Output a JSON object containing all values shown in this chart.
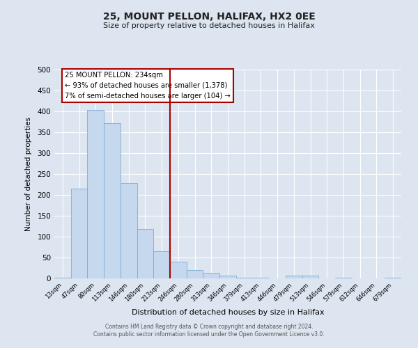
{
  "title": "25, MOUNT PELLON, HALIFAX, HX2 0EE",
  "subtitle": "Size of property relative to detached houses in Halifax",
  "xlabel": "Distribution of detached houses by size in Halifax",
  "ylabel": "Number of detached properties",
  "bar_labels": [
    "13sqm",
    "47sqm",
    "80sqm",
    "113sqm",
    "146sqm",
    "180sqm",
    "213sqm",
    "246sqm",
    "280sqm",
    "313sqm",
    "346sqm",
    "379sqm",
    "413sqm",
    "446sqm",
    "479sqm",
    "513sqm",
    "546sqm",
    "579sqm",
    "612sqm",
    "646sqm",
    "679sqm"
  ],
  "bar_values": [
    2,
    215,
    403,
    371,
    229,
    119,
    65,
    40,
    20,
    13,
    6,
    2,
    1,
    0,
    7,
    7,
    0,
    1,
    0,
    0,
    1
  ],
  "bar_color": "#c5d8ee",
  "bar_edge_color": "#7aadce",
  "vline_x": 6.5,
  "vline_color": "#aa0000",
  "annotation_title": "25 MOUNT PELLON: 234sqm",
  "annotation_line1": "← 93% of detached houses are smaller (1,378)",
  "annotation_line2": "7% of semi-detached houses are larger (104) →",
  "annotation_box_edgecolor": "#aa0000",
  "ylim": [
    0,
    500
  ],
  "yticks": [
    0,
    50,
    100,
    150,
    200,
    250,
    300,
    350,
    400,
    450,
    500
  ],
  "background_color": "#dde5f0",
  "plot_background": "#dde5f0",
  "grid_color": "#ffffff",
  "footer_line1": "Contains HM Land Registry data © Crown copyright and database right 2024.",
  "footer_line2": "Contains public sector information licensed under the Open Government Licence v3.0.",
  "figsize": [
    6.0,
    5.0
  ],
  "dpi": 100
}
